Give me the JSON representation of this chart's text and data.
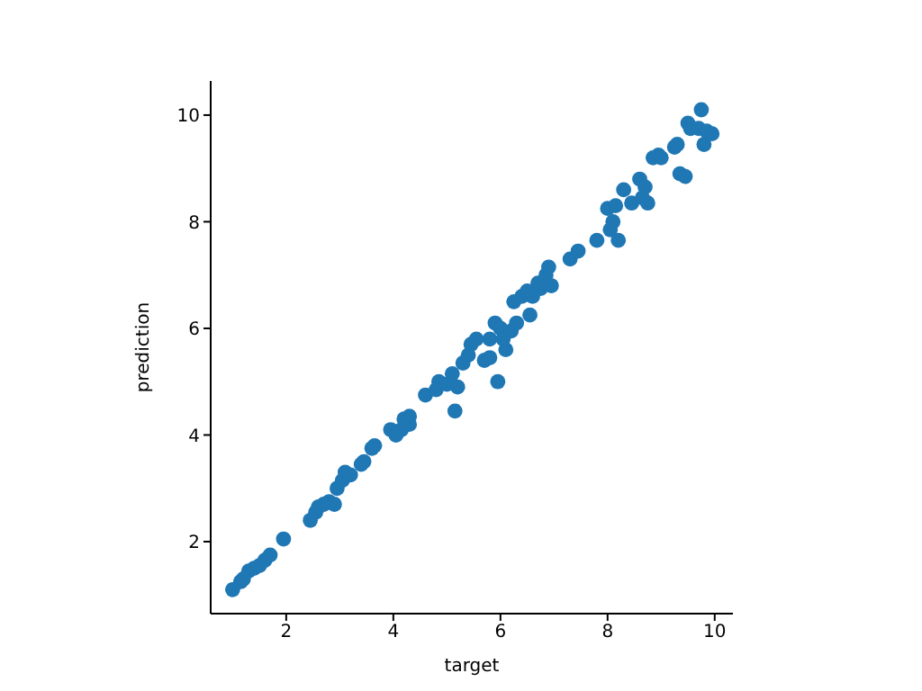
{
  "chart_data": {
    "type": "scatter",
    "xlabel": "target",
    "ylabel": "prediction",
    "x": [
      1.0,
      1.15,
      1.2,
      1.3,
      1.4,
      1.5,
      1.6,
      1.7,
      1.95,
      2.45,
      2.55,
      2.6,
      2.7,
      2.8,
      2.9,
      2.95,
      3.05,
      3.1,
      3.2,
      3.4,
      3.45,
      3.6,
      3.65,
      3.95,
      4.05,
      4.15,
      4.2,
      4.3,
      4.3,
      4.6,
      4.8,
      4.85,
      5.0,
      5.1,
      5.15,
      5.2,
      5.3,
      5.4,
      5.45,
      5.55,
      5.7,
      5.8,
      5.8,
      5.9,
      5.95,
      6.0,
      6.05,
      6.1,
      6.2,
      6.25,
      6.3,
      6.4,
      6.5,
      6.55,
      6.6,
      6.7,
      6.75,
      6.85,
      6.9,
      6.95,
      7.3,
      7.45,
      7.8,
      8.0,
      8.05,
      8.1,
      8.15,
      8.2,
      8.3,
      8.45,
      8.6,
      8.65,
      8.7,
      8.75,
      8.85,
      8.95,
      9.0,
      9.25,
      9.3,
      9.35,
      9.45,
      9.5,
      9.55,
      9.7,
      9.75,
      9.8,
      9.85,
      9.95
    ],
    "values": [
      1.1,
      1.25,
      1.3,
      1.45,
      1.5,
      1.55,
      1.65,
      1.75,
      2.05,
      2.4,
      2.55,
      2.65,
      2.7,
      2.75,
      2.7,
      3.0,
      3.15,
      3.3,
      3.25,
      3.45,
      3.5,
      3.75,
      3.8,
      4.1,
      4.0,
      4.1,
      4.3,
      4.35,
      4.2,
      4.75,
      4.85,
      5.0,
      4.95,
      5.15,
      4.45,
      4.9,
      5.35,
      5.5,
      5.7,
      5.8,
      5.4,
      5.45,
      5.8,
      6.1,
      5.0,
      6.0,
      5.8,
      5.6,
      5.95,
      6.5,
      6.1,
      6.6,
      6.7,
      6.25,
      6.6,
      6.85,
      6.75,
      7.0,
      7.15,
      6.8,
      7.3,
      7.45,
      7.65,
      8.25,
      7.85,
      8.0,
      8.3,
      7.65,
      8.6,
      8.35,
      8.8,
      8.45,
      8.65,
      8.35,
      9.2,
      9.25,
      9.2,
      9.4,
      9.45,
      8.9,
      8.85,
      9.85,
      9.75,
      9.75,
      10.1,
      9.45,
      9.7,
      9.65
    ],
    "color": "#1f77b4",
    "marker": "circle",
    "xlim": [
      0.59,
      10.34
    ],
    "xticks": [
      2,
      4,
      6,
      8,
      10
    ],
    "ylim": [
      0.65,
      10.64
    ],
    "yticks": [
      2,
      4,
      6,
      8,
      10
    ]
  }
}
